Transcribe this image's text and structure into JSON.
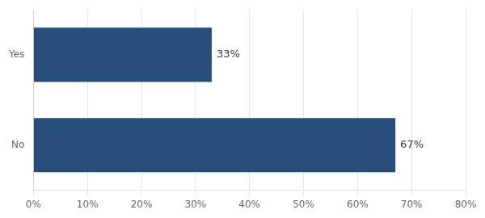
{
  "chart_data": {
    "type": "bar",
    "orientation": "horizontal",
    "categories": [
      "Yes",
      "No"
    ],
    "values": [
      33,
      67
    ],
    "value_labels": [
      "33%",
      "67%"
    ],
    "data_labels": true,
    "color": "#274e78",
    "xlim": [
      0,
      80
    ],
    "xticks": [
      {
        "value": 0,
        "label": "0%"
      },
      {
        "value": 10,
        "label": "10%"
      },
      {
        "value": 20,
        "label": "20%"
      },
      {
        "value": 30,
        "label": "30%"
      },
      {
        "value": 40,
        "label": "40%"
      },
      {
        "value": 50,
        "label": "50%"
      },
      {
        "value": 60,
        "label": "60%"
      },
      {
        "value": 70,
        "label": "70%"
      },
      {
        "value": 80,
        "label": "80%"
      }
    ],
    "grid": true
  }
}
